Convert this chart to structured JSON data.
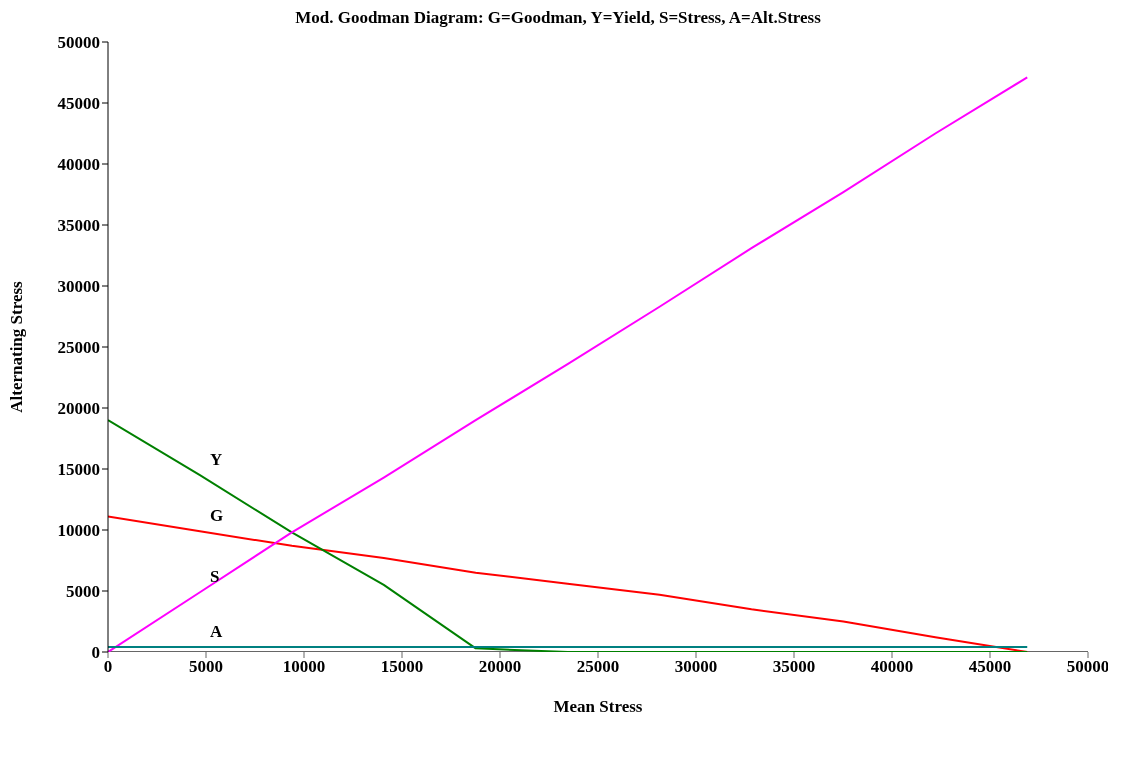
{
  "chart_data": {
    "type": "line",
    "title": "Mod. Goodman Diagram: G=Goodman, Y=Yield, S=Stress, A=Alt.Stress",
    "xlabel": "Mean Stress",
    "ylabel": "Alternating Stress",
    "x": [
      0,
      4690,
      9380,
      14070,
      18760,
      23450,
      28140,
      32830,
      37520,
      42210,
      46900
    ],
    "series": [
      {
        "name": "G",
        "color": "#ff0000",
        "values": [
          11100,
          9900,
          8700,
          7700,
          6500,
          5600,
          4700,
          3500,
          2500,
          1200,
          0
        ]
      },
      {
        "name": "Y",
        "color": "#008000",
        "values": [
          19000,
          14500,
          9800,
          5500,
          300,
          0,
          0,
          0,
          0,
          0,
          0
        ]
      },
      {
        "name": "S",
        "color": "#ff00ff",
        "values": [
          0,
          4900,
          9800,
          14300,
          19000,
          23600,
          28300,
          33100,
          37700,
          42500,
          47100
        ]
      },
      {
        "name": "A",
        "color": "#008080",
        "values": [
          400,
          400,
          400,
          400,
          400,
          400,
          400,
          400,
          400,
          400,
          400
        ]
      }
    ],
    "xlim": [
      0,
      50000
    ],
    "xticks": [
      0,
      5000,
      10000,
      15000,
      20000,
      25000,
      30000,
      35000,
      40000,
      45000,
      50000
    ],
    "ylim": [
      0,
      50000
    ],
    "yticks": [
      0,
      5000,
      10000,
      15000,
      20000,
      25000,
      30000,
      35000,
      40000,
      45000,
      50000
    ],
    "grid": false,
    "legend": false
  }
}
